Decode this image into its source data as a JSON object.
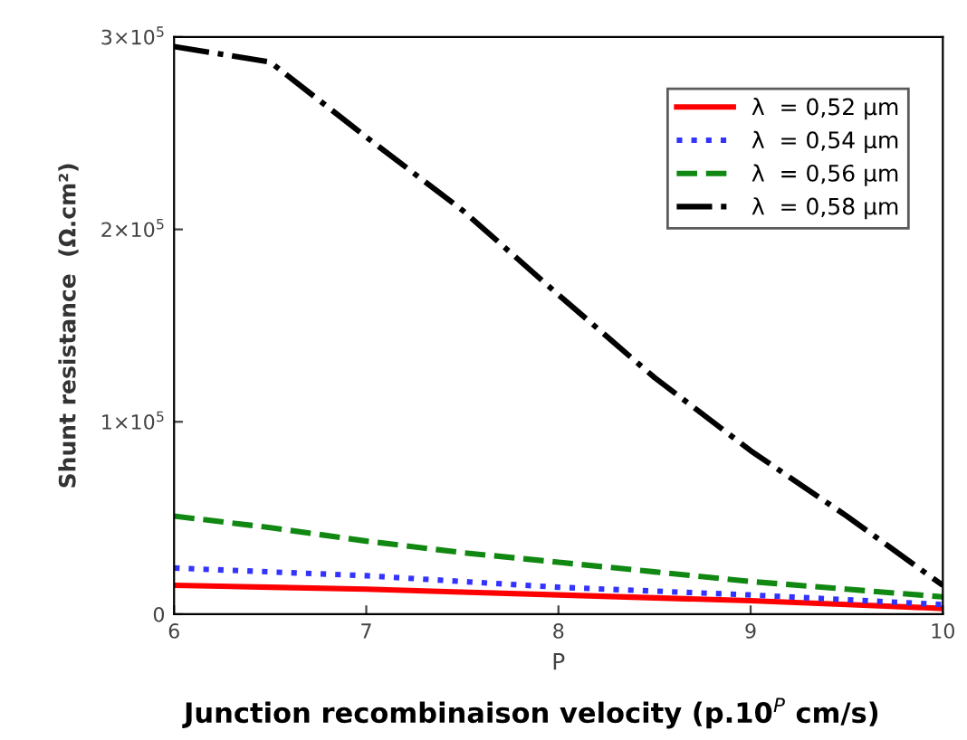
{
  "chart_data": {
    "type": "line",
    "xlabel": "P",
    "ylabel": "Shunt resistance  (Ω.cm²)",
    "annotations": [
      "Junction recombinaison velocity (p.10$^{P}$ cm/s)"
    ],
    "x": [
      6,
      6.5,
      7,
      7.5,
      8,
      8.5,
      9,
      9.5,
      10
    ],
    "series": [
      {
        "name": "λ  = 0,52 µm",
        "color": "#ff0000",
        "line_style": "solid",
        "values": [
          15000,
          14000,
          13000,
          11500,
          10000,
          8500,
          7000,
          5000,
          3000
        ]
      },
      {
        "name": "λ  = 0,54 µm",
        "color": "#3333ff",
        "line_style": "dotted",
        "values": [
          24000,
          22000,
          20000,
          17000,
          14000,
          12000,
          10000,
          7500,
          5000
        ]
      },
      {
        "name": "λ  = 0,56 µm",
        "color": "#118811",
        "line_style": "dashed",
        "values": [
          51000,
          45000,
          38000,
          32000,
          27000,
          22000,
          17000,
          13000,
          9000
        ]
      },
      {
        "name": "λ  = 0,58 µm",
        "color": "#000000",
        "line_style": "dashdot",
        "values": [
          295000,
          287000,
          248000,
          210000,
          166000,
          123000,
          85000,
          51000,
          15000
        ]
      }
    ],
    "xlim": [
      6,
      10
    ],
    "xticks": [
      6,
      7,
      8,
      9,
      10
    ],
    "ylim": [
      0,
      300000
    ],
    "yticks": [
      0,
      {
        "value": 100000,
        "label": "1×10$^{5}$"
      },
      {
        "value": 200000,
        "label": "2×10$^{5}$"
      },
      {
        "value": 300000,
        "label": "3×10$^{5}$"
      }
    ],
    "legend": "top right",
    "grid": false
  }
}
